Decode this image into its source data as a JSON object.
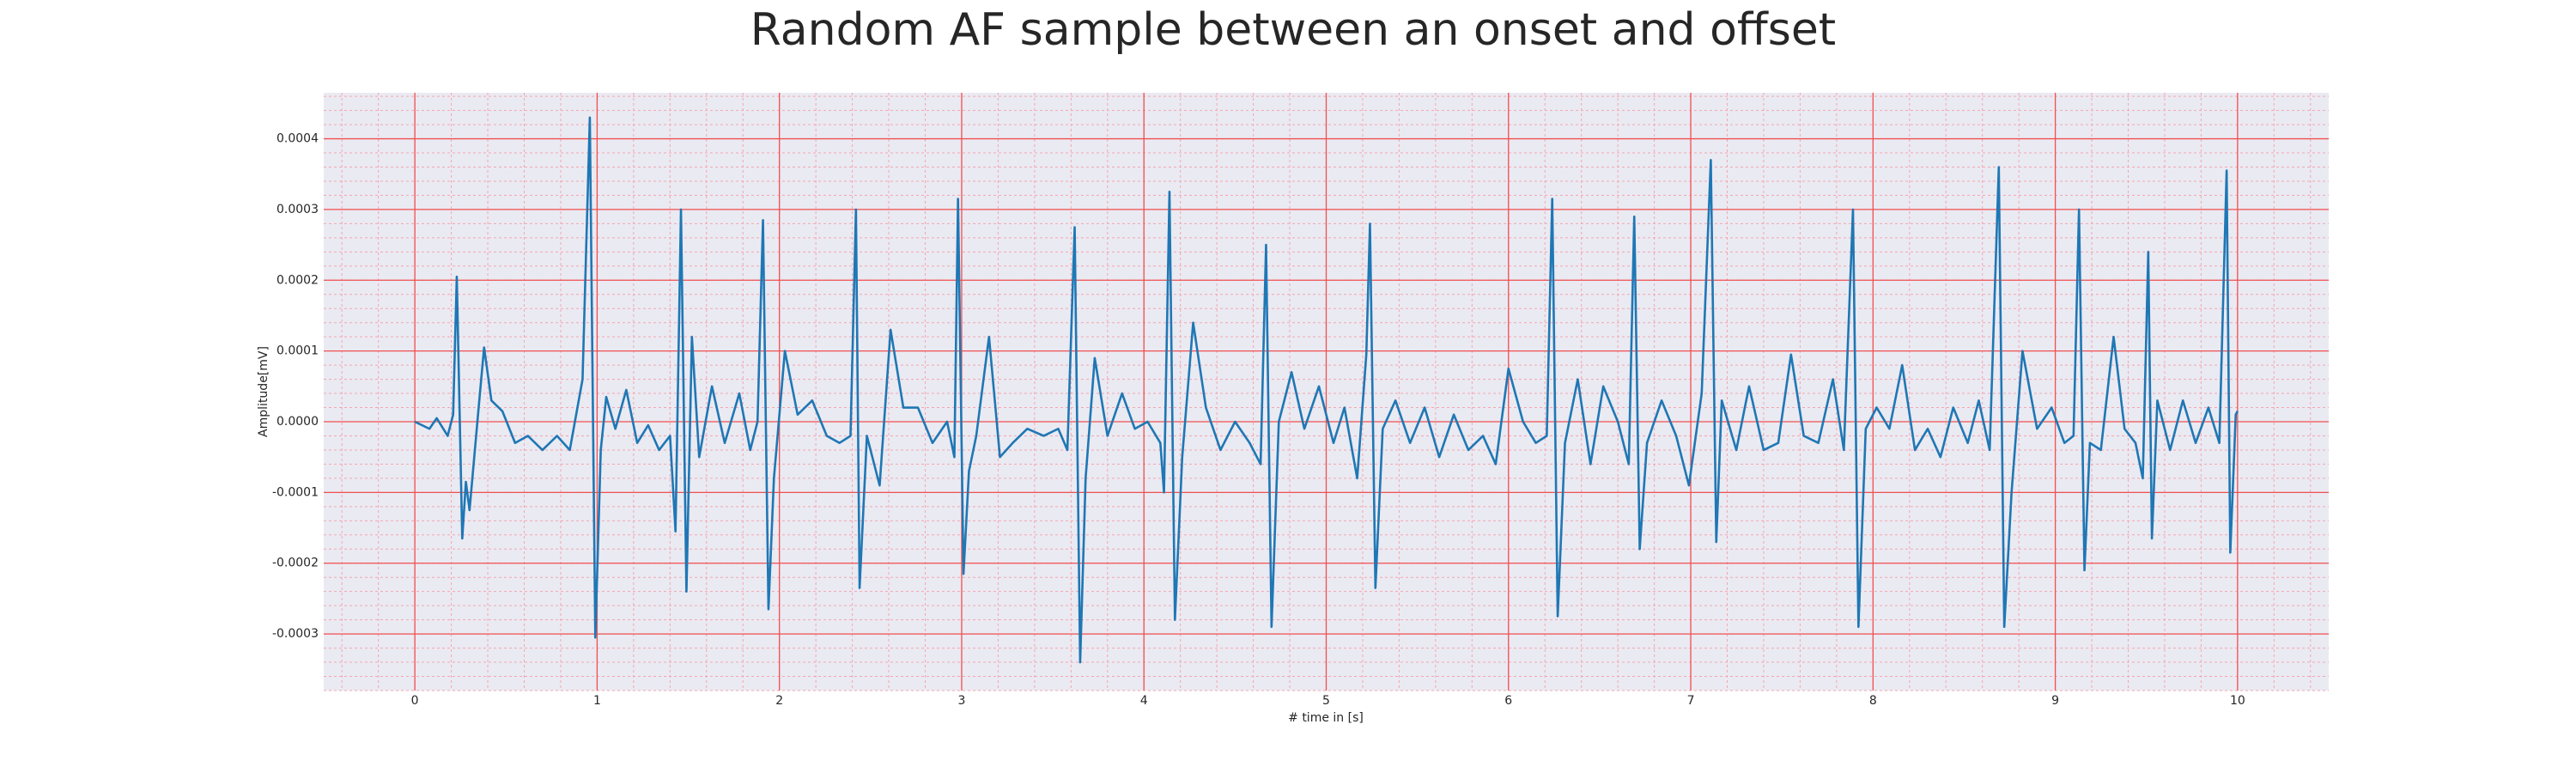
{
  "chart_data": {
    "type": "line",
    "title": "Random AF sample between an onset and offset",
    "xlabel": "# time in [s]",
    "ylabel": "Amplitude[mV]",
    "color": "#1f77b4",
    "grid": true,
    "minor_grid": true,
    "xlim": [
      -0.5,
      10.5
    ],
    "ylim": [
      -0.00038,
      0.000465
    ],
    "xticks": [
      0,
      1,
      2,
      3,
      4,
      5,
      6,
      7,
      8,
      9,
      10
    ],
    "yticks": [
      -0.0003,
      -0.0002,
      -0.0001,
      {
        "value": 0,
        "label": "0.0000"
      },
      0.0001,
      0.0002,
      0.0003,
      0.0004
    ],
    "x": [
      0,
      0.08,
      0.12,
      0.18,
      0.21,
      0.23,
      0.26,
      0.28,
      0.3,
      0.35,
      0.38,
      0.42,
      0.48,
      0.55,
      0.62,
      0.7,
      0.78,
      0.85,
      0.92,
      0.96,
      0.99,
      1.02,
      1.05,
      1.1,
      1.16,
      1.22,
      1.28,
      1.34,
      1.4,
      1.43,
      1.46,
      1.49,
      1.52,
      1.56,
      1.63,
      1.7,
      1.78,
      1.84,
      1.88,
      1.91,
      1.94,
      1.97,
      2.03,
      2.1,
      2.18,
      2.26,
      2.33,
      2.39,
      2.42,
      2.44,
      2.48,
      2.55,
      2.61,
      2.68,
      2.76,
      2.84,
      2.92,
      2.96,
      2.98,
      3.01,
      3.04,
      3.08,
      3.15,
      3.21,
      3.28,
      3.36,
      3.45,
      3.53,
      3.58,
      3.62,
      3.65,
      3.68,
      3.73,
      3.8,
      3.88,
      3.95,
      4.02,
      4.09,
      4.11,
      4.14,
      4.17,
      4.21,
      4.27,
      4.34,
      4.42,
      4.5,
      4.58,
      4.64,
      4.67,
      4.7,
      4.74,
      4.81,
      4.88,
      4.96,
      5.04,
      5.1,
      5.17,
      5.22,
      5.24,
      5.27,
      5.31,
      5.38,
      5.46,
      5.54,
      5.62,
      5.7,
      5.78,
      5.86,
      5.93,
      6.0,
      6.08,
      6.15,
      6.21,
      6.24,
      6.27,
      6.31,
      6.38,
      6.45,
      6.52,
      6.6,
      6.66,
      6.69,
      6.72,
      6.76,
      6.84,
      6.92,
      6.99,
      7.06,
      7.11,
      7.14,
      7.17,
      7.25,
      7.32,
      7.4,
      7.48,
      7.55,
      7.62,
      7.7,
      7.78,
      7.84,
      7.89,
      7.92,
      7.96,
      8.02,
      8.09,
      8.16,
      8.23,
      8.3,
      8.37,
      8.44,
      8.52,
      8.58,
      8.64,
      8.69,
      8.72,
      8.76,
      8.82,
      8.9,
      8.98,
      9.05,
      9.1,
      9.13,
      9.16,
      9.19,
      9.25,
      9.32,
      9.38,
      9.44,
      9.48,
      9.51,
      9.53,
      9.56,
      9.63,
      9.7,
      9.77,
      9.84,
      9.9,
      9.94,
      9.96,
      9.99,
      10.0
    ],
    "values": [
      0,
      -1e-05,
      5e-06,
      -2e-05,
      1e-05,
      0.000205,
      -0.000165,
      -8.5e-05,
      -0.000125,
      2e-05,
      0.000105,
      3e-05,
      1.5e-05,
      -3e-05,
      -2e-05,
      -4e-05,
      -2e-05,
      -4e-05,
      6e-05,
      0.00043,
      -0.000305,
      -4e-05,
      3.5e-05,
      -1e-05,
      4.5e-05,
      -3e-05,
      -5e-06,
      -4e-05,
      -2e-05,
      -0.000155,
      0.0003,
      -0.00024,
      0.00012,
      -5e-05,
      5e-05,
      -3e-05,
      4e-05,
      -4e-05,
      0,
      0.000285,
      -0.000265,
      -8e-05,
      0.0001,
      1e-05,
      3e-05,
      -2e-05,
      -3e-05,
      -2e-05,
      0.0003,
      -0.000235,
      -2e-05,
      -9e-05,
      0.00013,
      2e-05,
      2e-05,
      -3e-05,
      0,
      -5e-05,
      0.000315,
      -0.000215,
      -7e-05,
      -2e-05,
      0.00012,
      -5e-05,
      -3e-05,
      -1e-05,
      -2e-05,
      -1e-05,
      -4e-05,
      0.000275,
      -0.00034,
      -8e-05,
      9e-05,
      -2e-05,
      4e-05,
      -1e-05,
      0,
      -3e-05,
      -0.0001,
      0.000325,
      -0.00028,
      -5e-05,
      0.00014,
      2e-05,
      -4e-05,
      0,
      -3e-05,
      -6e-05,
      0.00025,
      -0.00029,
      0,
      7e-05,
      -1e-05,
      5e-05,
      -3e-05,
      2e-05,
      -8e-05,
      9.5e-05,
      0.00028,
      -0.000235,
      -1e-05,
      3e-05,
      -3e-05,
      2e-05,
      -5e-05,
      1e-05,
      -4e-05,
      -2e-05,
      -6e-05,
      7.5e-05,
      0,
      -3e-05,
      -2e-05,
      0.000315,
      -0.000275,
      -3e-05,
      6e-05,
      -6e-05,
      5e-05,
      0,
      -6e-05,
      0.00029,
      -0.00018,
      -3e-05,
      3e-05,
      -2e-05,
      -9e-05,
      4e-05,
      0.00037,
      -0.00017,
      3e-05,
      -4e-05,
      5e-05,
      -4e-05,
      -3e-05,
      9.5e-05,
      -2e-05,
      -3e-05,
      6e-05,
      -4e-05,
      0.0003,
      -0.00029,
      -1e-05,
      2e-05,
      -1e-05,
      8e-05,
      -4e-05,
      -1e-05,
      -5e-05,
      2e-05,
      -3e-05,
      3e-05,
      -4e-05,
      0.00036,
      -0.00029,
      -0.0001,
      0.0001,
      -1e-05,
      2e-05,
      -3e-05,
      -2e-05,
      0.0003,
      -0.00021,
      -3e-05,
      -4e-05,
      0.00012,
      -1e-05,
      -3e-05,
      -8e-05,
      0.00024,
      -0.000165,
      3e-05,
      -4e-05,
      3e-05,
      -3e-05,
      2e-05,
      -3e-05,
      0.000355,
      -0.000185,
      1e-05,
      1.5e-05
    ]
  }
}
